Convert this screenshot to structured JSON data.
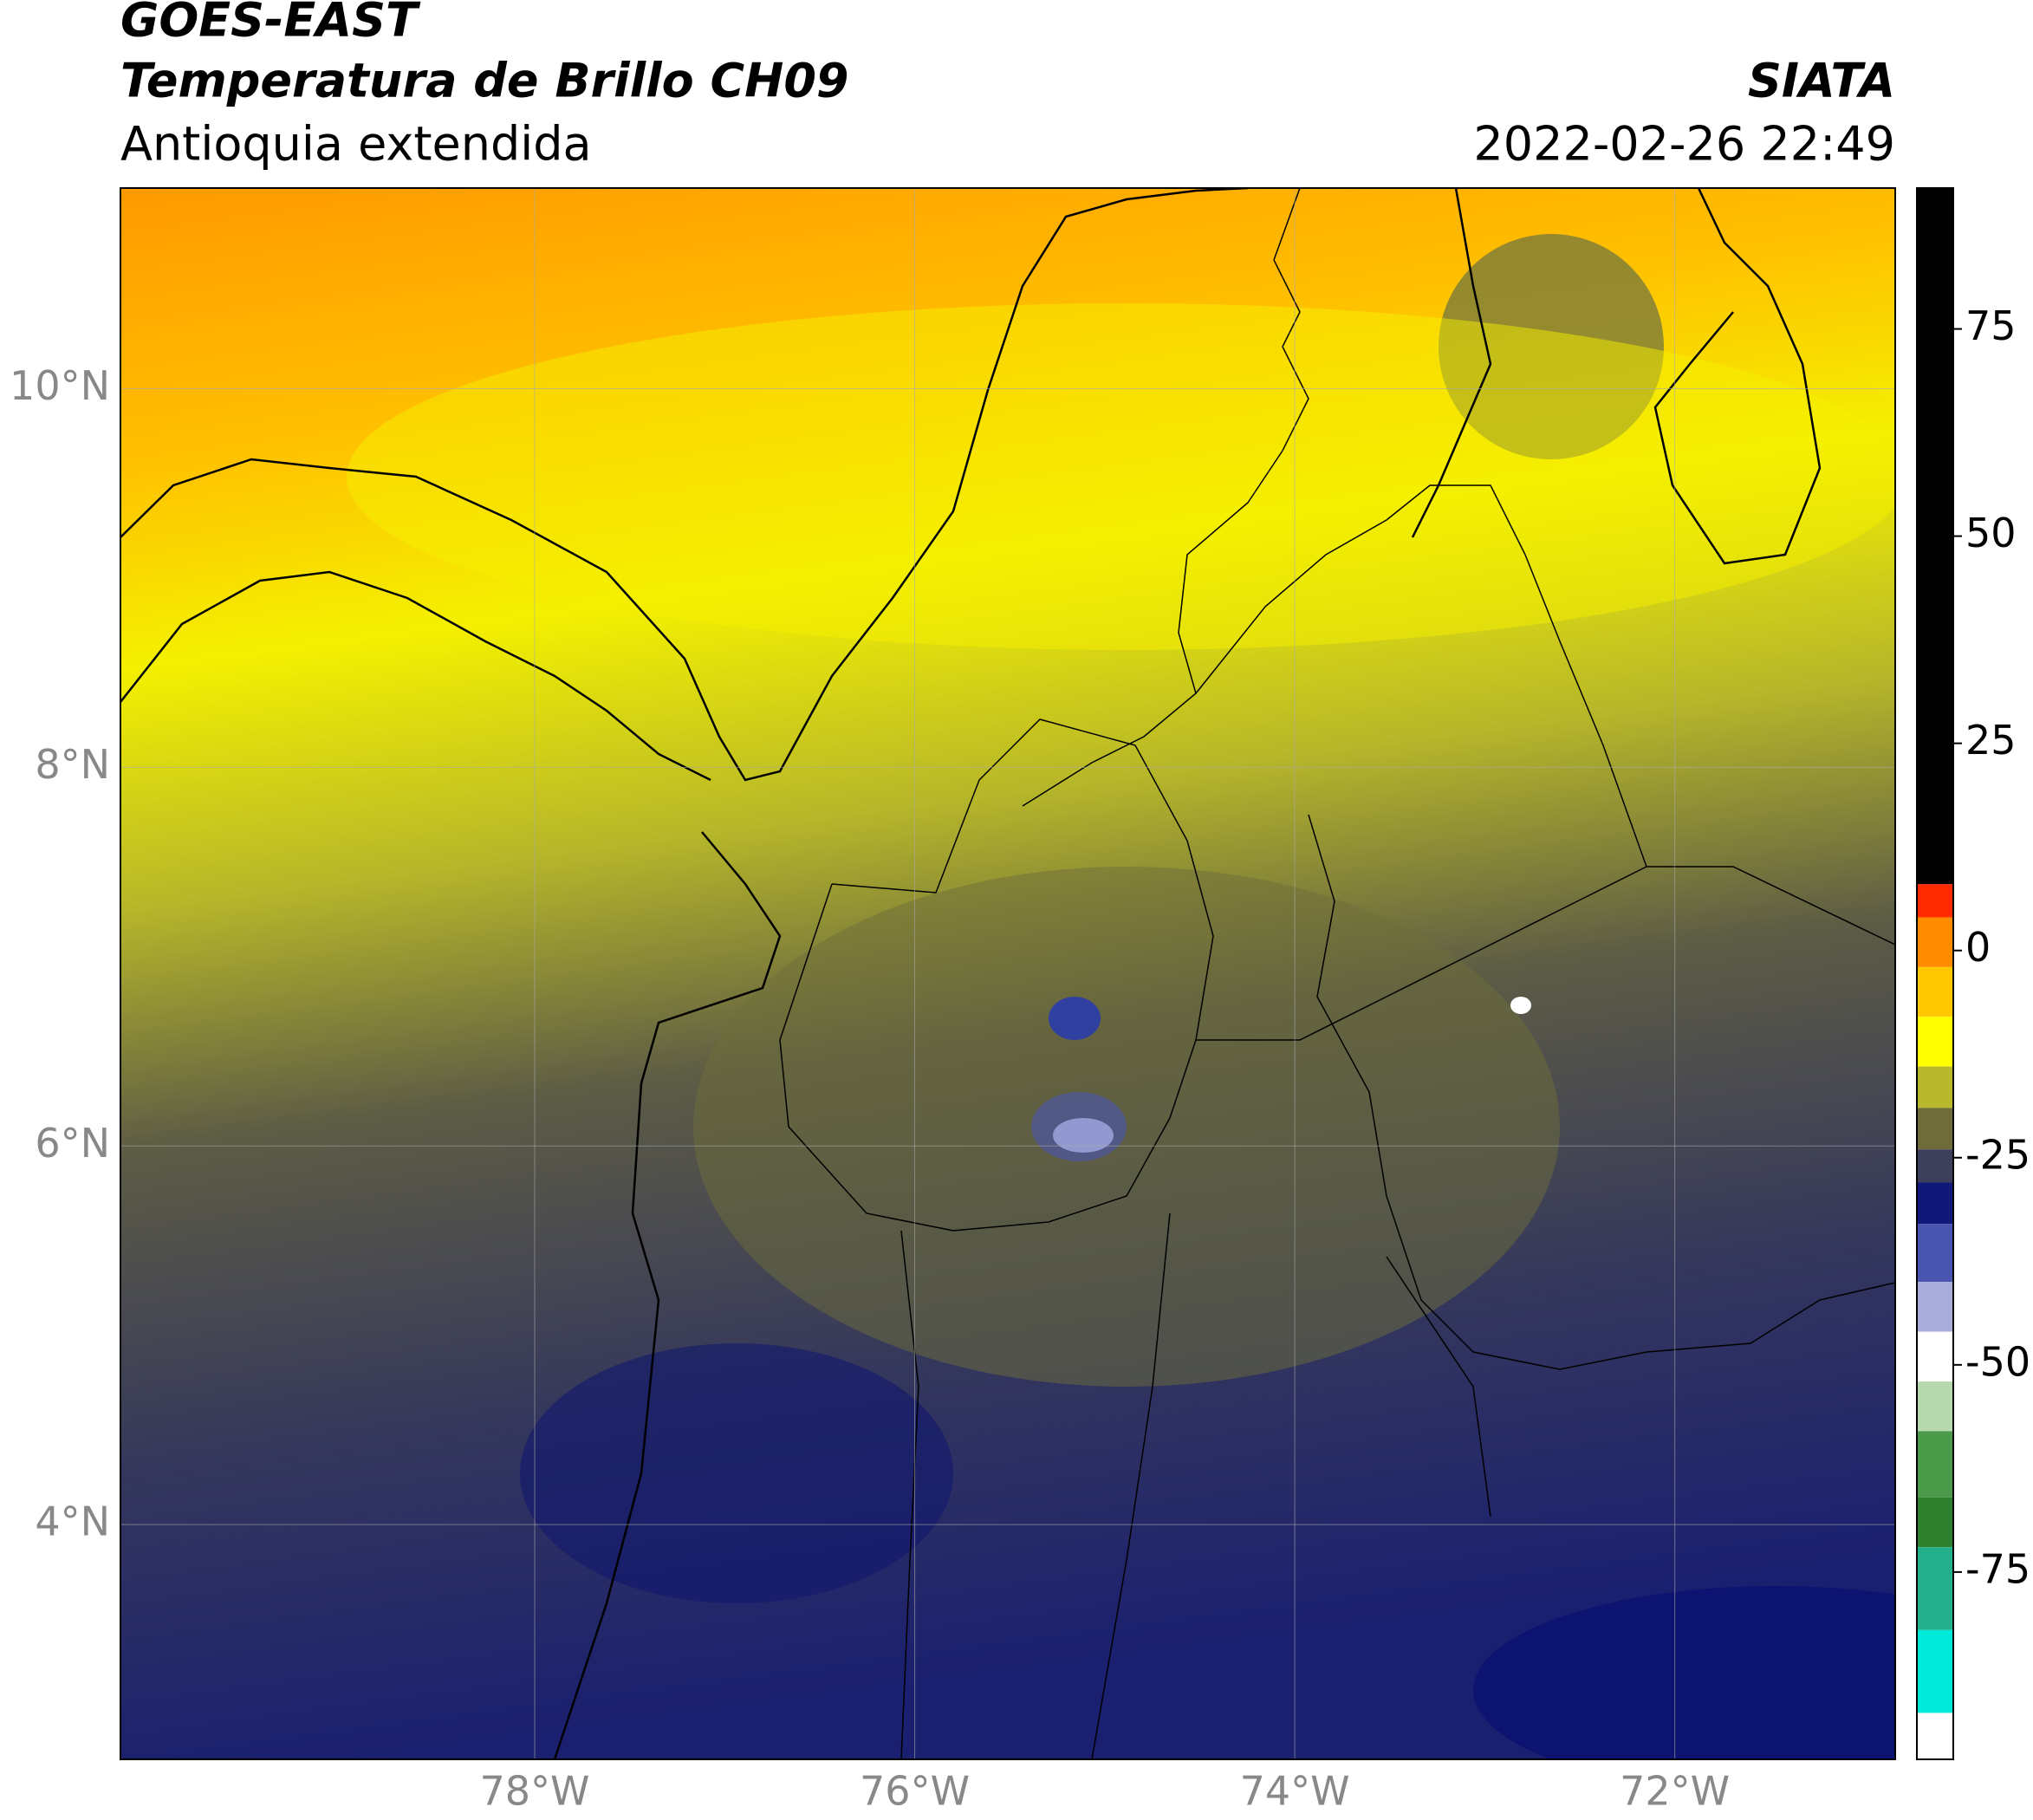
{
  "header": {
    "title": "GOES-EAST",
    "subtitle": "Temperatura de Brillo CH09",
    "region": "Antioquia extendida",
    "source": "SIATA",
    "timestamp": "2022-02-26 22:49"
  },
  "map": {
    "xlim": [
      -80.18,
      -70.84
    ],
    "ylim": [
      2.76,
      11.06
    ],
    "xticks": [
      {
        "value": -78,
        "label": "78°W"
      },
      {
        "value": -76,
        "label": "76°W"
      },
      {
        "value": -74,
        "label": "74°W"
      },
      {
        "value": -72,
        "label": "72°W"
      }
    ],
    "yticks": [
      {
        "value": 10,
        "label": "10°N"
      },
      {
        "value": 8,
        "label": "8°N"
      },
      {
        "value": 6,
        "label": "6°N"
      },
      {
        "value": 4,
        "label": "4°N"
      }
    ],
    "grid": true
  },
  "colorbar": {
    "lim": [
      -97.6,
      92
    ],
    "ticks": [
      75,
      50,
      25,
      0,
      -25,
      -50,
      -75
    ],
    "bands": [
      {
        "from": 8,
        "to": 92,
        "color": "#000000"
      },
      {
        "from": 4,
        "to": 8,
        "color": "#ff2a00"
      },
      {
        "from": -2,
        "to": 4,
        "color": "#ff8c00"
      },
      {
        "from": -8,
        "to": -2,
        "color": "#ffc800"
      },
      {
        "from": -14,
        "to": -8,
        "color": "#ffff00"
      },
      {
        "from": -19,
        "to": -14,
        "color": "#b9b82c"
      },
      {
        "from": -24,
        "to": -19,
        "color": "#6e6d3a"
      },
      {
        "from": -28,
        "to": -24,
        "color": "#3e3f5a"
      },
      {
        "from": -33,
        "to": -28,
        "color": "#101878"
      },
      {
        "from": -40,
        "to": -33,
        "color": "#4a55b0"
      },
      {
        "from": -46,
        "to": -40,
        "color": "#a8acd8"
      },
      {
        "from": -52,
        "to": -46,
        "color": "#ffffff"
      },
      {
        "from": -58,
        "to": -52,
        "color": "#b8d8b0"
      },
      {
        "from": -66,
        "to": -58,
        "color": "#4a9a4a"
      },
      {
        "from": -72,
        "to": -66,
        "color": "#2e7f2e"
      },
      {
        "from": -82,
        "to": -72,
        "color": "#22b08a"
      },
      {
        "from": -92,
        "to": -82,
        "color": "#00e8d8"
      },
      {
        "from": -97.6,
        "to": -92,
        "color": "#ffffff"
      }
    ]
  }
}
